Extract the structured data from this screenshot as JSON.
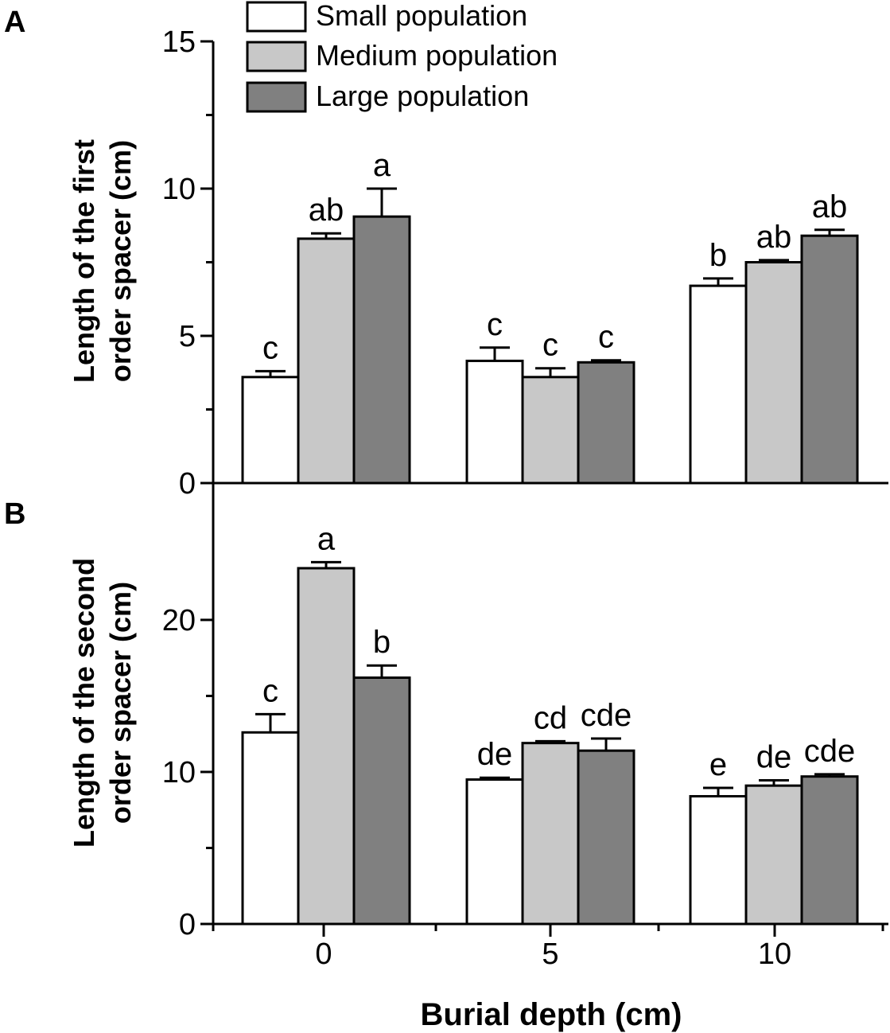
{
  "chart_data": {
    "type": "bar",
    "xlabel": "Burial depth (cm)",
    "categories": [
      "0",
      "5",
      "10"
    ],
    "legend": {
      "placement": "top-left",
      "entries": [
        {
          "name": "Small population",
          "color": "#ffffff"
        },
        {
          "name": "Medium population",
          "color": "#c8c8c8"
        },
        {
          "name": "Large population",
          "color": "#808080"
        }
      ]
    },
    "panels": [
      {
        "tag": "A",
        "ylabel_lines": [
          "Length of the first",
          "order spacer (cm)"
        ],
        "ylim": [
          0,
          15
        ],
        "yticks": [
          "0",
          "5",
          "10",
          "15"
        ],
        "series": [
          {
            "name": "Small population",
            "values": [
              3.6,
              4.15,
              6.7
            ],
            "errors": [
              0.2,
              0.45,
              0.25
            ],
            "letters": [
              "c",
              "c",
              "b"
            ]
          },
          {
            "name": "Medium population",
            "values": [
              8.3,
              3.6,
              7.5
            ],
            "errors": [
              0.18,
              0.3,
              0.07
            ],
            "letters": [
              "ab",
              "c",
              "ab"
            ]
          },
          {
            "name": "Large population",
            "values": [
              9.05,
              4.1,
              8.4
            ],
            "errors": [
              0.95,
              0.07,
              0.2
            ],
            "letters": [
              "a",
              "c",
              "ab"
            ]
          }
        ]
      },
      {
        "tag": "B",
        "ylabel_lines": [
          "Length of the second",
          "order spacer (cm)"
        ],
        "ylim": [
          0,
          29
        ],
        "yticks": [
          "0",
          "10",
          "20"
        ],
        "series": [
          {
            "name": "Small population",
            "values": [
              12.6,
              9.5,
              8.4
            ],
            "errors": [
              1.2,
              0.12,
              0.55
            ],
            "letters": [
              "c",
              "de",
              "e"
            ]
          },
          {
            "name": "Medium population",
            "values": [
              23.4,
              11.9,
              9.1
            ],
            "errors": [
              0.4,
              0.12,
              0.35
            ],
            "letters": [
              "a",
              "cd",
              "de"
            ]
          },
          {
            "name": "Large population",
            "values": [
              16.2,
              11.4,
              9.7
            ],
            "errors": [
              0.8,
              0.8,
              0.15
            ],
            "letters": [
              "b",
              "cde",
              "cde"
            ]
          }
        ]
      }
    ]
  }
}
